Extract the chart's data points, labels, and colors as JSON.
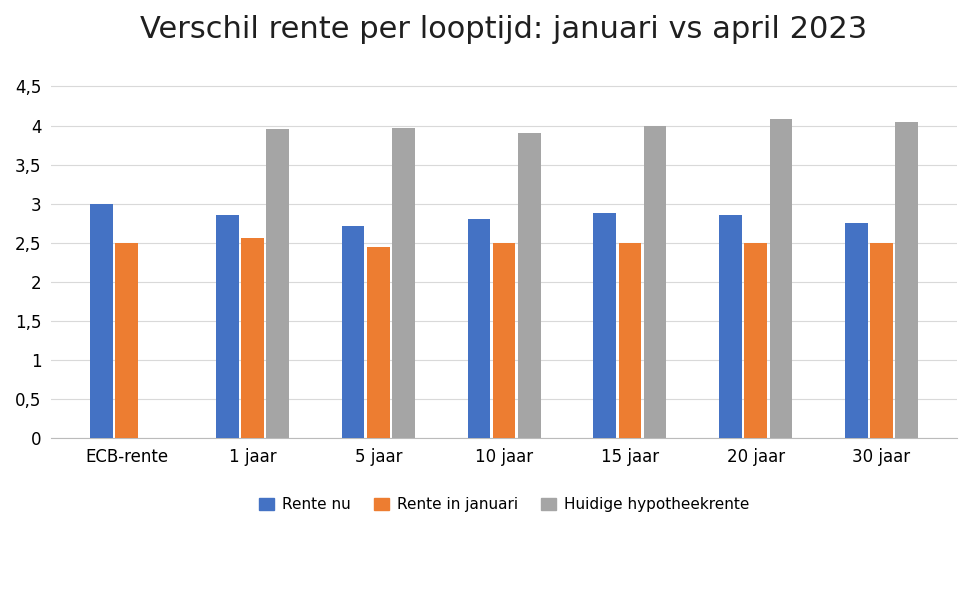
{
  "title": "Verschil rente per looptijd: januari vs april 2023",
  "categories": [
    "ECB-rente",
    "1 jaar",
    "5 jaar",
    "10 jaar",
    "15 jaar",
    "20 jaar",
    "30 jaar"
  ],
  "series": {
    "Rente nu": [
      3.0,
      2.86,
      2.72,
      2.8,
      2.88,
      2.86,
      2.76
    ],
    "Rente in januari": [
      2.5,
      2.56,
      2.45,
      2.5,
      2.5,
      2.5,
      2.5
    ],
    "Huidige hypotheekrente": [
      null,
      3.95,
      3.97,
      3.91,
      4.0,
      4.08,
      4.05
    ]
  },
  "colors": {
    "Rente nu": "#4472C4",
    "Rente in januari": "#ED7D31",
    "Huidige hypotheekrente": "#A5A5A5"
  },
  "ylim": [
    0,
    4.8
  ],
  "yticks": [
    0,
    0.5,
    1.0,
    1.5,
    2.0,
    2.5,
    3.0,
    3.5,
    4.0,
    4.5
  ],
  "ytick_labels": [
    "0",
    "0,5",
    "1",
    "1,5",
    "2",
    "2,5",
    "3",
    "3,5",
    "4",
    "4,5"
  ],
  "title_fontsize": 22,
  "legend_fontsize": 11,
  "tick_fontsize": 12,
  "bar_width": 0.18,
  "bar_gap": 0.02,
  "background_color": "#FFFFFF",
  "grid_color": "#D9D9D9"
}
